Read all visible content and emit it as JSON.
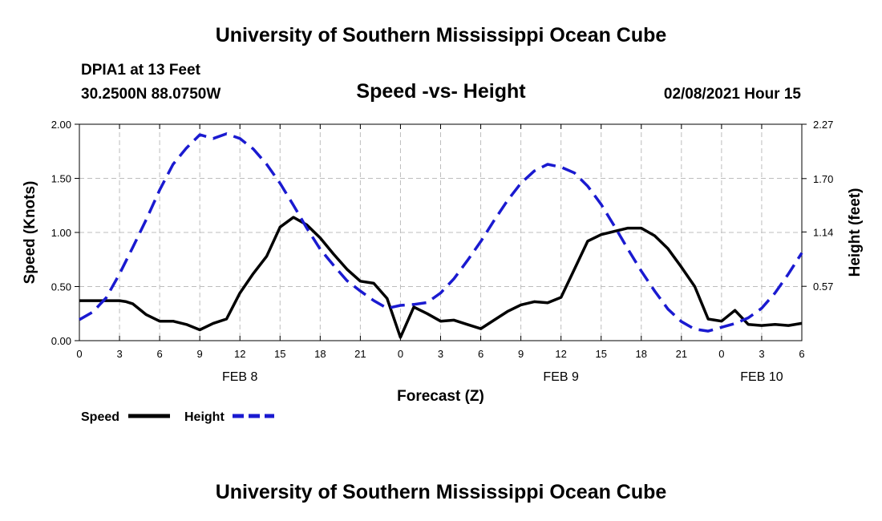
{
  "header": {
    "top_title": "University of Southern Mississippi Ocean Cube",
    "station": "DPIA1 at 13 Feet",
    "coords": "30.2500N 88.0750W",
    "stamp": "02/08/2021 Hour 15",
    "bottom_title": "University of Southern Mississippi Ocean Cube"
  },
  "chart_data": {
    "type": "line",
    "title": "Speed -vs- Height",
    "xlabel": "Forecast (Z)",
    "ylabel": "Speed (Knots)",
    "y2label": "Height (feet)",
    "xlim": [
      0,
      54
    ],
    "ylim": [
      0,
      2
    ],
    "y2lim": [
      0,
      2.27
    ],
    "x_ticks": [
      0,
      3,
      6,
      9,
      12,
      15,
      18,
      21,
      24,
      27,
      30,
      33,
      36,
      39,
      42,
      45,
      48,
      51,
      54
    ],
    "x_tick_labels": [
      "0",
      "3",
      "6",
      "9",
      "12",
      "15",
      "18",
      "21",
      "0",
      "3",
      "6",
      "9",
      "12",
      "15",
      "18",
      "21",
      "0",
      "3",
      "6"
    ],
    "y_ticks": [
      0,
      0.5,
      1,
      1.5,
      2
    ],
    "y_tick_labels": [
      "0.00",
      "0.50",
      "1.00",
      "1.50",
      "2.00"
    ],
    "y2_ticks": [
      0.57,
      1.14,
      1.7,
      2.27
    ],
    "y2_tick_labels": [
      "0.57",
      "1.14",
      "1.70",
      "2.27"
    ],
    "day_labels": [
      {
        "x": 12,
        "label": "FEB 8"
      },
      {
        "x": 36,
        "label": "FEB 9"
      },
      {
        "x": 51,
        "label": "FEB 10"
      }
    ],
    "grid": true,
    "legend_position": "bottom-left",
    "series": [
      {
        "name": "Speed",
        "axis": "left",
        "color": "#000000",
        "dash": "solid",
        "x": [
          0,
          1,
          2,
          3,
          3.5,
          4,
          5,
          6,
          7,
          8,
          9,
          10,
          11,
          12,
          13,
          14,
          15,
          16,
          17,
          18,
          19,
          20,
          21,
          22,
          23,
          24,
          25,
          26,
          27,
          28,
          29,
          30,
          31,
          32,
          33,
          34,
          35,
          36,
          37,
          38,
          39,
          40,
          41,
          42,
          43,
          44,
          45,
          46,
          47,
          48,
          49,
          50,
          51,
          52,
          53,
          54
        ],
        "values": [
          0.37,
          0.37,
          0.37,
          0.37,
          0.36,
          0.34,
          0.24,
          0.18,
          0.18,
          0.15,
          0.1,
          0.16,
          0.2,
          0.44,
          0.62,
          0.78,
          1.05,
          1.14,
          1.07,
          0.95,
          0.8,
          0.66,
          0.55,
          0.53,
          0.39,
          0.03,
          0.31,
          0.25,
          0.18,
          0.19,
          0.15,
          0.11,
          0.19,
          0.27,
          0.33,
          0.36,
          0.35,
          0.4,
          0.66,
          0.92,
          0.98,
          1.01,
          1.04,
          1.04,
          0.97,
          0.85,
          0.68,
          0.5,
          0.2,
          0.18,
          0.28,
          0.15,
          0.14,
          0.15,
          0.14,
          0.16
        ]
      },
      {
        "name": "Height",
        "axis": "right",
        "color": "#1a1ad0",
        "dash": "dashed",
        "x": [
          0,
          1,
          2,
          3,
          4,
          5,
          6,
          7,
          8,
          9,
          10,
          11,
          12,
          13,
          14,
          15,
          16,
          17,
          18,
          19,
          20,
          21,
          22,
          23,
          24,
          25,
          26,
          27,
          28,
          29,
          30,
          31,
          32,
          33,
          34,
          35,
          36,
          37,
          38,
          39,
          40,
          41,
          42,
          43,
          44,
          45,
          46,
          47,
          48,
          49,
          50,
          51,
          52,
          53,
          54
        ],
        "values": [
          0.22,
          0.3,
          0.45,
          0.7,
          0.98,
          1.27,
          1.58,
          1.85,
          2.02,
          2.16,
          2.12,
          2.17,
          2.12,
          2.01,
          1.85,
          1.65,
          1.42,
          1.18,
          0.96,
          0.79,
          0.63,
          0.52,
          0.42,
          0.34,
          0.37,
          0.38,
          0.4,
          0.5,
          0.65,
          0.84,
          1.04,
          1.26,
          1.47,
          1.65,
          1.78,
          1.85,
          1.82,
          1.76,
          1.62,
          1.43,
          1.2,
          0.96,
          0.73,
          0.52,
          0.33,
          0.2,
          0.12,
          0.1,
          0.14,
          0.18,
          0.24,
          0.34,
          0.5,
          0.7,
          0.92
        ]
      }
    ]
  }
}
